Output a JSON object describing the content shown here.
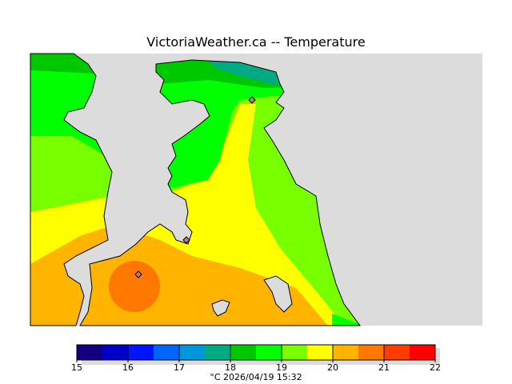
{
  "title": "VictoriaWeather.ca -- Temperature",
  "colorbar": {
    "min": 15,
    "max": 22,
    "step": 0.5,
    "colors": [
      "#14007f",
      "#0000c8",
      "#0014ff",
      "#0064ff",
      "#0096dc",
      "#00aa82",
      "#00c800",
      "#00ff00",
      "#78ff00",
      "#ffff00",
      "#ffb400",
      "#ff7800",
      "#ff3c00",
      "#ff0000"
    ],
    "ticks": [
      "15",
      "16",
      "17",
      "18",
      "19",
      "20",
      "21",
      "22"
    ]
  },
  "stamp": "°C  2026/04/19 15:32",
  "background_color": "#dcdcdc"
}
